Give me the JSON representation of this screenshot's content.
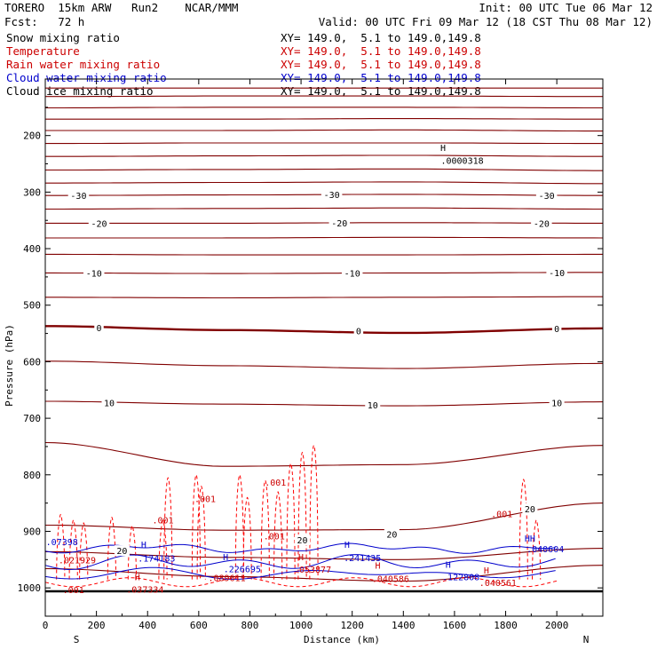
{
  "header": {
    "model": "TORERO  15km ARW   Run2    NCAR/MMM",
    "init": "Init: 00 UTC Tue 06 Mar 12",
    "fcst": "Fcst:   72 h",
    "valid": "Valid: 00 UTC Fri 09 Mar 12 (18 CST Thu 08 Mar 12)"
  },
  "legend": [
    {
      "label": "Snow mixing ratio",
      "xy": "XY= 149.0,  5.1 to 149.0,149.8",
      "color": "#000000",
      "label_color": "#000000"
    },
    {
      "label": "Temperature",
      "xy": "XY= 149.0,  5.1 to 149.0,149.8",
      "color": "#800000",
      "label_color": "#cc0000"
    },
    {
      "label": "Rain water mixing ratio",
      "xy": "XY= 149.0,  5.1 to 149.0,149.8",
      "color": "#ff0000",
      "label_color": "#cc0000"
    },
    {
      "label": "Cloud water mixing ratio",
      "xy": "XY= 149.0,  5.1 to 149.0,149.8",
      "color": "#0000cc",
      "label_color": "#0000cc"
    },
    {
      "label": "Cloud ice mixing ratio",
      "xy": "XY= 149.0,  5.1 to 149.0,149.8",
      "color": "#000000",
      "label_color": "#000000"
    }
  ],
  "chart_data": {
    "type": "contour cross-section",
    "xlabel": "Distance (km)",
    "ylabel": "Pressure (hPa)",
    "xlim": [
      0,
      2180
    ],
    "ylim": [
      1050,
      100
    ],
    "x_ticks": [
      0,
      200,
      400,
      600,
      800,
      1000,
      1200,
      1400,
      1600,
      1800,
      2000
    ],
    "y_ticks": [
      200,
      300,
      400,
      500,
      600,
      700,
      800,
      900,
      1000
    ],
    "left_end_label": "S",
    "right_end_label": "N",
    "ground_pressure": 1006,
    "colors": {
      "temperature": "#800000",
      "rain": "#ff0000",
      "cloud_water": "#0000cc",
      "snow": "#000000",
      "temperature_label": "#000000",
      "rain_label": "#cc0000",
      "cloud_label": "#0000cc"
    },
    "isotherms": [
      {
        "p": [
          116,
          116,
          116,
          116
        ]
      },
      {
        "p": [
          131,
          130,
          130,
          131
        ]
      },
      {
        "p": [
          151,
          150,
          150,
          151
        ]
      },
      {
        "p": [
          171,
          171,
          170,
          171
        ]
      },
      {
        "p": [
          191,
          191,
          190,
          192
        ]
      },
      {
        "p": [
          214,
          213,
          213,
          214
        ]
      },
      {
        "p": [
          237,
          236,
          235,
          237
        ]
      },
      {
        "p": [
          261,
          260,
          259,
          262
        ]
      },
      {
        "p": [
          284,
          283,
          282,
          285
        ]
      },
      {
        "p": [
          306,
          305,
          304,
          306
        ],
        "label": "-30"
      },
      {
        "p": [
          330,
          329,
          328,
          330
        ]
      },
      {
        "p": [
          355,
          355,
          354,
          355
        ],
        "label": "-20"
      },
      {
        "p": [
          381,
          381,
          380,
          381
        ]
      },
      {
        "p": [
          410,
          411,
          411,
          410
        ]
      },
      {
        "p": [
          443,
          444,
          443,
          442
        ],
        "label": "-10"
      },
      {
        "p": [
          486,
          487,
          486,
          485
        ]
      },
      {
        "p": [
          537,
          544,
          549,
          541
        ],
        "label": "0",
        "bold": true
      },
      {
        "p": [
          599,
          607,
          612,
          603
        ]
      },
      {
        "p": [
          670,
          675,
          678,
          671
        ],
        "label": "10"
      },
      {
        "p": [
          743,
          785,
          782,
          748
        ]
      },
      {
        "p": [
          889,
          898,
          897,
          850
        ],
        "label": "20"
      },
      {
        "p": [
          936,
          946,
          950,
          930
        ]
      },
      {
        "p": [
          966,
          980,
          988,
          960
        ]
      }
    ],
    "labels": [
      {
        "x": 130,
        "p": 306,
        "text": "-30",
        "kind": "temperature"
      },
      {
        "x": 1120,
        "p": 304,
        "text": "-30",
        "kind": "temperature"
      },
      {
        "x": 1960,
        "p": 306,
        "text": "-30",
        "kind": "temperature"
      },
      {
        "x": 210,
        "p": 355,
        "text": "-20",
        "kind": "temperature"
      },
      {
        "x": 1150,
        "p": 354,
        "text": "-20",
        "kind": "temperature"
      },
      {
        "x": 1940,
        "p": 355,
        "text": "-20",
        "kind": "temperature"
      },
      {
        "x": 190,
        "p": 443,
        "text": "-10",
        "kind": "temperature"
      },
      {
        "x": 1200,
        "p": 443,
        "text": "-10",
        "kind": "temperature"
      },
      {
        "x": 2000,
        "p": 442,
        "text": "-10",
        "kind": "temperature"
      },
      {
        "x": 210,
        "p": 540,
        "text": "0",
        "kind": "temperature"
      },
      {
        "x": 1225,
        "p": 545,
        "text": "0",
        "kind": "temperature"
      },
      {
        "x": 2000,
        "p": 541,
        "text": "0",
        "kind": "temperature"
      },
      {
        "x": 250,
        "p": 672,
        "text": "10",
        "kind": "temperature"
      },
      {
        "x": 1280,
        "p": 676,
        "text": "10",
        "kind": "temperature"
      },
      {
        "x": 2000,
        "p": 672,
        "text": "10",
        "kind": "temperature"
      },
      {
        "x": 300,
        "p": 934,
        "text": "20",
        "kind": "temperature"
      },
      {
        "x": 1005,
        "p": 915,
        "text": "20",
        "kind": "temperature"
      },
      {
        "x": 1355,
        "p": 905,
        "text": "20",
        "kind": "temperature"
      },
      {
        "x": 1895,
        "p": 860,
        "text": "20",
        "kind": "temperature"
      },
      {
        "x": 1555,
        "p": 221,
        "text": "H",
        "kind": "snow"
      },
      {
        "x": 1630,
        "p": 244,
        "text": ".0000318",
        "kind": "snow"
      },
      {
        "x": 460,
        "p": 880,
        "text": ".001",
        "kind": "rain"
      },
      {
        "x": 625,
        "p": 842,
        "text": ".001",
        "kind": "rain"
      },
      {
        "x": 900,
        "p": 813,
        "text": ".001",
        "kind": "rain"
      },
      {
        "x": 895,
        "p": 908,
        "text": ".001",
        "kind": "rain"
      },
      {
        "x": 1785,
        "p": 869,
        "text": ".001",
        "kind": "rain"
      },
      {
        "x": 110,
        "p": 1003,
        "text": ".001",
        "kind": "rain"
      },
      {
        "x": 125,
        "p": 950,
        "text": ".021929",
        "kind": "rain"
      },
      {
        "x": 390,
        "p": 1002,
        "text": ".037334",
        "kind": "rain"
      },
      {
        "x": 360,
        "p": 980,
        "text": "H",
        "kind": "rain"
      },
      {
        "x": 710,
        "p": 982,
        "text": ".089611",
        "kind": "rain"
      },
      {
        "x": 1045,
        "p": 967,
        "text": ".053877",
        "kind": "rain"
      },
      {
        "x": 1000,
        "p": 945,
        "text": "H",
        "kind": "rain"
      },
      {
        "x": 1350,
        "p": 983,
        "text": ".040586",
        "kind": "rain"
      },
      {
        "x": 1300,
        "p": 960,
        "text": "H",
        "kind": "rain"
      },
      {
        "x": 1770,
        "p": 990,
        "text": ".040561",
        "kind": "rain"
      },
      {
        "x": 1725,
        "p": 968,
        "text": "H",
        "kind": "rain"
      },
      {
        "x": 65,
        "p": 918,
        "text": ".07398",
        "kind": "cloud"
      },
      {
        "x": 435,
        "p": 947,
        "text": ".174183",
        "kind": "cloud"
      },
      {
        "x": 385,
        "p": 923,
        "text": "H",
        "kind": "cloud"
      },
      {
        "x": 770,
        "p": 966,
        "text": ".226695",
        "kind": "cloud"
      },
      {
        "x": 705,
        "p": 945,
        "text": "H",
        "kind": "cloud"
      },
      {
        "x": 1240,
        "p": 946,
        "text": ".241435",
        "kind": "cloud"
      },
      {
        "x": 1180,
        "p": 923,
        "text": "H",
        "kind": "cloud"
      },
      {
        "x": 1625,
        "p": 980,
        "text": ".122808",
        "kind": "cloud"
      },
      {
        "x": 1575,
        "p": 958,
        "text": "H",
        "kind": "cloud"
      },
      {
        "x": 1955,
        "p": 931,
        "text": ".040604",
        "kind": "cloud"
      },
      {
        "x": 1895,
        "p": 912,
        "text": "HH",
        "kind": "cloud"
      }
    ]
  }
}
